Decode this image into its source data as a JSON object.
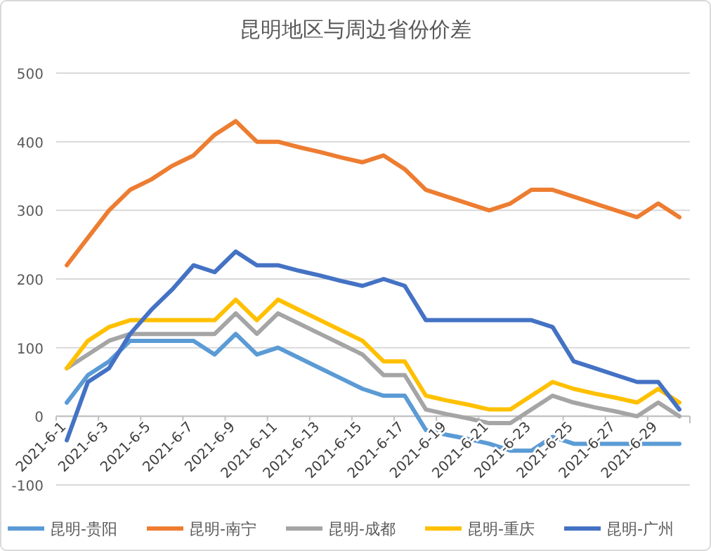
{
  "chart_data": {
    "type": "line",
    "title": "昆明地区与周边省份价差",
    "categories": [
      "2021-6-1",
      null,
      "2021-6-3",
      null,
      "2021-6-5",
      null,
      "2021-6-7",
      null,
      "2021-6-9",
      null,
      "2021-6-11",
      null,
      "2021-6-13",
      null,
      "2021-6-15",
      null,
      "2021-6-17",
      null,
      "2021-6-19",
      null,
      "2021-6-21",
      null,
      "2021-6-23",
      null,
      "2021-6-25",
      null,
      "2021-6-27",
      null,
      "2021-6-29",
      null
    ],
    "series": [
      {
        "name": "昆明-贵阳",
        "color": "#5b9bd5",
        "values": [
          20,
          60,
          80,
          110,
          110,
          110,
          110,
          90,
          120,
          90,
          100,
          85,
          70,
          55,
          40,
          30,
          30,
          -20,
          -27,
          -33,
          -40,
          -50,
          -50,
          -30,
          -40,
          -40,
          -40,
          -40,
          -40,
          -40
        ]
      },
      {
        "name": "昆明-南宁",
        "color": "#ed7d31",
        "values": [
          220,
          260,
          300,
          330,
          345,
          365,
          380,
          410,
          430,
          400,
          400,
          392,
          385,
          377,
          370,
          380,
          360,
          330,
          320,
          310,
          300,
          310,
          330,
          330,
          320,
          310,
          300,
          290,
          310,
          290
        ]
      },
      {
        "name": "昆明-成都",
        "color": "#a5a5a5",
        "values": [
          70,
          90,
          110,
          120,
          120,
          120,
          120,
          120,
          150,
          120,
          150,
          135,
          120,
          105,
          90,
          60,
          60,
          10,
          3,
          -3,
          -10,
          -10,
          10,
          30,
          20,
          13,
          7,
          0,
          20,
          0
        ]
      },
      {
        "name": "昆明-重庆",
        "color": "#ffc000",
        "values": [
          70,
          110,
          130,
          140,
          140,
          140,
          140,
          140,
          170,
          140,
          170,
          155,
          140,
          125,
          110,
          80,
          80,
          30,
          23,
          17,
          10,
          10,
          30,
          50,
          40,
          33,
          27,
          20,
          40,
          20
        ]
      },
      {
        "name": "昆明-广州",
        "color": "#4472c4",
        "values": [
          -35,
          50,
          70,
          120,
          155,
          185,
          220,
          210,
          240,
          220,
          220,
          212,
          205,
          197,
          190,
          200,
          190,
          140,
          140,
          140,
          140,
          140,
          140,
          130,
          80,
          70,
          60,
          50,
          50,
          10
        ]
      }
    ],
    "ylim": [
      -100,
      500
    ],
    "yticks": [
      -100,
      0,
      100,
      200,
      300,
      400,
      500
    ],
    "grid": "y",
    "legend": "bottom",
    "line_style": "solid"
  }
}
